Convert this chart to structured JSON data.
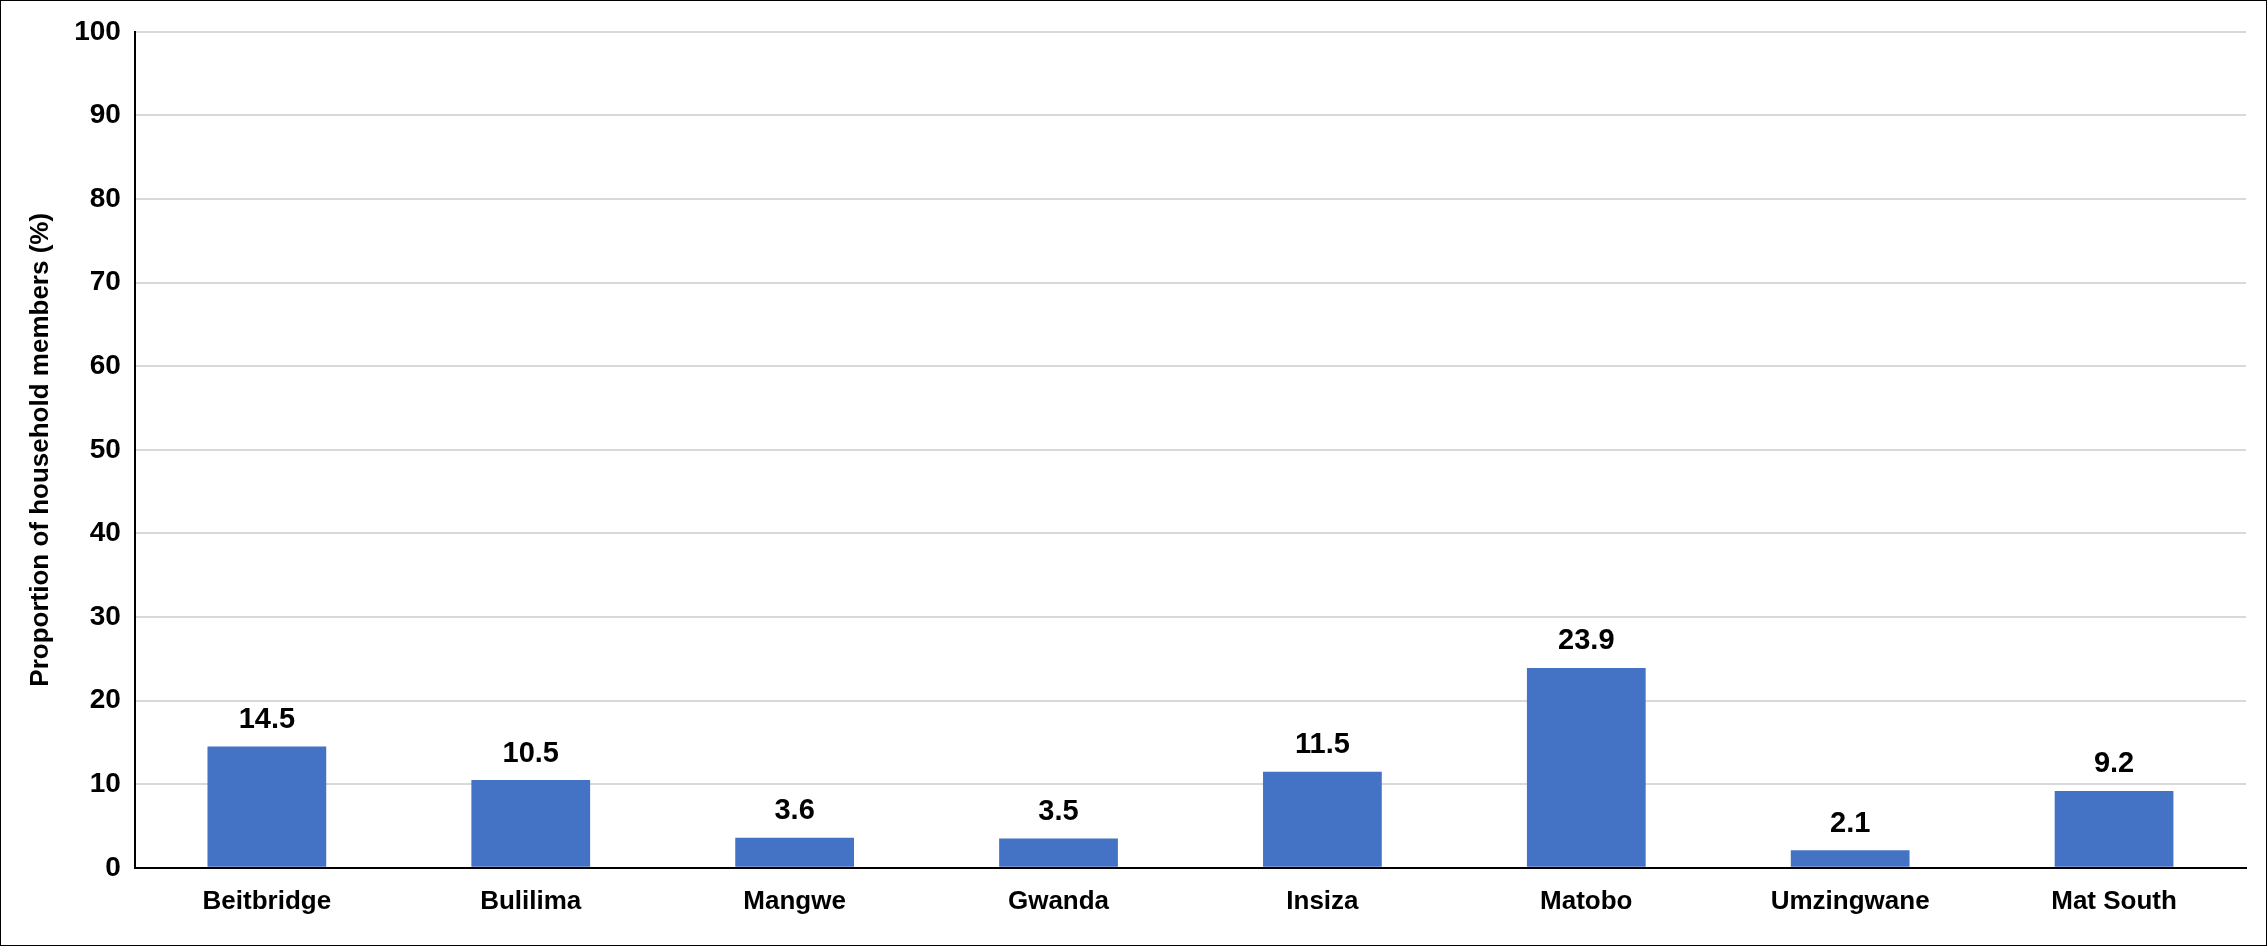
{
  "chart_data": {
    "type": "bar",
    "ylabel": "Proportion of household members (%)",
    "categories": [
      "Beitbridge",
      "Bulilima",
      "Mangwe",
      "Gwanda",
      "Insiza",
      "Matobo",
      "Umzingwane",
      "Mat South"
    ],
    "values": [
      14.5,
      10.5,
      3.6,
      3.5,
      11.5,
      23.9,
      2.1,
      9.2
    ],
    "color": "#4472c4",
    "ylim": [
      0,
      100
    ],
    "yticks": [
      0,
      10,
      20,
      30,
      40,
      50,
      60,
      70,
      80,
      90,
      100
    ],
    "grid": "y",
    "data_labels": true
  }
}
